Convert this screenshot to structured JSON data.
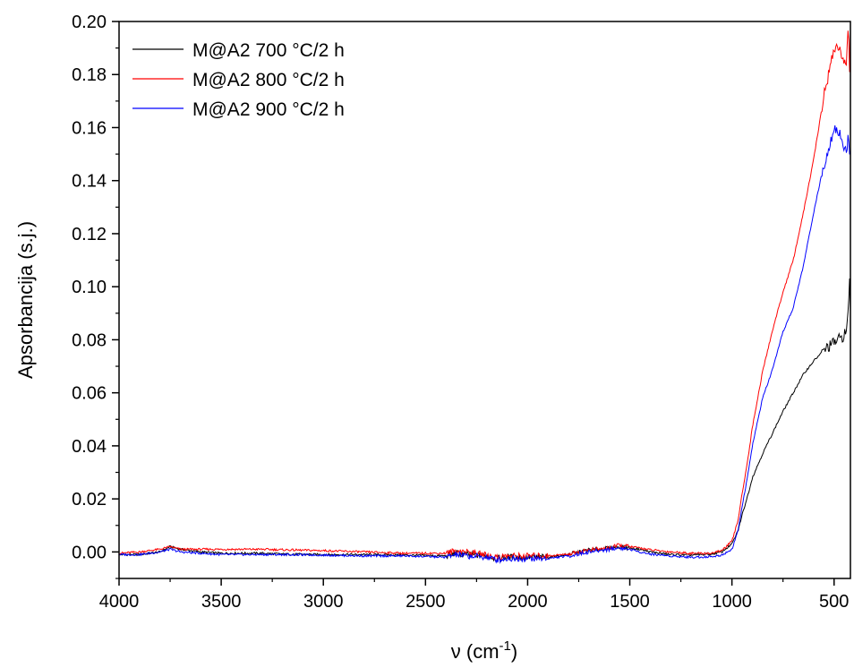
{
  "chart_data": {
    "type": "line",
    "xlabel": "ν (cm",
    "xlabel_sup": "-1",
    "xlabel_close": ")",
    "ylabel": "Apsorbancija (s.j.)",
    "xlim": [
      4000,
      420
    ],
    "ylim": [
      -0.01,
      0.2
    ],
    "x_reversed": true,
    "grid": false,
    "legend_position": "top-left",
    "x_ticks": [
      4000,
      3500,
      3000,
      2500,
      2000,
      1500,
      1000,
      500
    ],
    "x_tick_labels": [
      "4000",
      "3500",
      "3000",
      "2500",
      "2000",
      "1500",
      "1000",
      "500"
    ],
    "y_ticks": [
      0.0,
      0.02,
      0.04,
      0.06,
      0.08,
      0.1,
      0.12,
      0.14,
      0.16,
      0.18,
      0.2
    ],
    "y_tick_labels": [
      "0.00",
      "0.02",
      "0.04",
      "0.06",
      "0.08",
      "0.10",
      "0.12",
      "0.14",
      "0.16",
      "0.18",
      "0.20"
    ],
    "series": [
      {
        "name": "M@A2 700 °C/2 h",
        "color": "#000000",
        "x": [
          4000,
          3900,
          3800,
          3750,
          3700,
          3600,
          3500,
          3400,
          3300,
          3200,
          3000,
          2800,
          2600,
          2400,
          2350,
          2300,
          2200,
          2150,
          2100,
          2000,
          1900,
          1800,
          1700,
          1650,
          1600,
          1550,
          1500,
          1450,
          1400,
          1300,
          1200,
          1100,
          1050,
          1000,
          970,
          950,
          920,
          900,
          850,
          800,
          750,
          700,
          650,
          600,
          550,
          500,
          460,
          440,
          430,
          425,
          420
        ],
        "y": [
          -0.001,
          -0.001,
          0.0,
          0.002,
          0.001,
          0.0,
          -0.0005,
          -0.0005,
          -0.0005,
          -0.0008,
          -0.001,
          -0.001,
          -0.0012,
          -0.0015,
          -0.0005,
          -0.001,
          -0.0015,
          -0.0025,
          -0.002,
          -0.002,
          -0.002,
          -0.001,
          0.0008,
          0.001,
          0.0015,
          0.002,
          0.0015,
          0.001,
          0.0,
          -0.001,
          -0.0012,
          -0.0008,
          0.0,
          0.003,
          0.008,
          0.014,
          0.022,
          0.028,
          0.037,
          0.045,
          0.053,
          0.06,
          0.067,
          0.072,
          0.076,
          0.079,
          0.081,
          0.083,
          0.09,
          0.107,
          0.09
        ]
      },
      {
        "name": "M@A2 800 °C/2 h",
        "color": "#ff0000",
        "x": [
          4000,
          3900,
          3800,
          3750,
          3700,
          3600,
          3500,
          3400,
          3300,
          3200,
          3000,
          2800,
          2600,
          2400,
          2350,
          2300,
          2200,
          2150,
          2100,
          2000,
          1900,
          1800,
          1700,
          1650,
          1600,
          1550,
          1500,
          1450,
          1400,
          1300,
          1200,
          1100,
          1050,
          1000,
          970,
          950,
          920,
          900,
          850,
          800,
          750,
          700,
          650,
          600,
          550,
          500,
          470,
          450,
          440,
          430,
          425,
          420
        ],
        "y": [
          -0.0005,
          0.0,
          0.001,
          0.002,
          0.001,
          0.001,
          0.001,
          0.001,
          0.001,
          0.0008,
          0.0005,
          0.0,
          -0.0005,
          -0.0005,
          0.0005,
          0.0,
          -0.0012,
          -0.002,
          -0.0015,
          -0.0015,
          -0.0015,
          -0.0008,
          0.0008,
          0.001,
          0.0015,
          0.0025,
          0.002,
          0.0015,
          0.0008,
          0.0,
          -0.0005,
          -0.0005,
          0.0005,
          0.004,
          0.012,
          0.022,
          0.036,
          0.047,
          0.068,
          0.084,
          0.098,
          0.11,
          0.128,
          0.148,
          0.172,
          0.19,
          0.19,
          0.183,
          0.185,
          0.199,
          0.18,
          0.195
        ]
      },
      {
        "name": "M@A2 900 °C/2 h",
        "color": "#0000ff",
        "x": [
          4000,
          3900,
          3800,
          3750,
          3700,
          3600,
          3500,
          3400,
          3300,
          3200,
          3000,
          2800,
          2600,
          2400,
          2350,
          2300,
          2200,
          2150,
          2100,
          2000,
          1900,
          1800,
          1700,
          1650,
          1600,
          1550,
          1500,
          1450,
          1400,
          1300,
          1200,
          1100,
          1050,
          1000,
          970,
          950,
          920,
          900,
          850,
          800,
          750,
          700,
          650,
          600,
          550,
          500,
          470,
          450,
          440,
          430,
          425,
          420
        ],
        "y": [
          -0.001,
          -0.001,
          0.0,
          0.001,
          0.0,
          -0.0005,
          -0.001,
          -0.001,
          -0.001,
          -0.001,
          -0.0012,
          -0.0015,
          -0.0015,
          -0.002,
          -0.001,
          -0.0015,
          -0.002,
          -0.003,
          -0.0025,
          -0.0025,
          -0.0025,
          -0.0015,
          0.0,
          0.0005,
          0.001,
          0.0015,
          0.001,
          0.0,
          -0.0008,
          -0.0015,
          -0.002,
          -0.0018,
          -0.0012,
          0.001,
          0.008,
          0.017,
          0.03,
          0.04,
          0.058,
          0.069,
          0.083,
          0.092,
          0.108,
          0.128,
          0.146,
          0.16,
          0.158,
          0.152,
          0.15,
          0.158,
          0.148,
          0.152
        ]
      }
    ]
  }
}
